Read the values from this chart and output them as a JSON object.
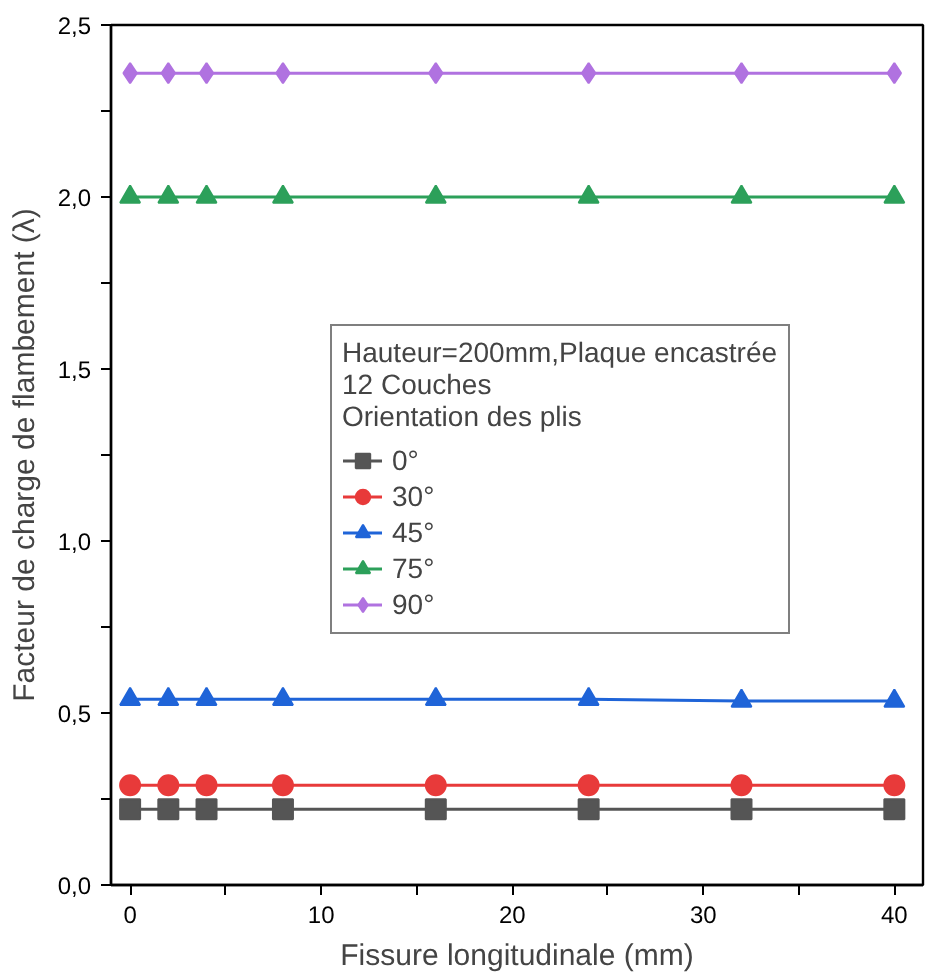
{
  "chart_data": {
    "type": "line",
    "xlabel": "Fissure longitudinale (mm)",
    "ylabel": "Facteur de charge de flambement (λ)",
    "legend_title": "Hauteur=200mm,Plaque encastrée\n12 Couches\nOrientation des plis",
    "x": [
      0,
      2,
      4,
      8,
      16,
      24,
      32,
      40
    ],
    "series": [
      {
        "name": "0°",
        "color": "#555555",
        "marker": "square",
        "values": [
          0.22,
          0.22,
          0.22,
          0.22,
          0.22,
          0.22,
          0.22,
          0.22
        ]
      },
      {
        "name": "30°",
        "color": "#e83a3a",
        "marker": "circle",
        "values": [
          0.29,
          0.29,
          0.29,
          0.29,
          0.29,
          0.29,
          0.29,
          0.29
        ]
      },
      {
        "name": "45°",
        "color": "#1f64d8",
        "marker": "triangle",
        "values": [
          0.54,
          0.54,
          0.54,
          0.54,
          0.54,
          0.54,
          0.535,
          0.535
        ]
      },
      {
        "name": "75°",
        "color": "#2ca05a",
        "marker": "triangle",
        "values": [
          2.0,
          2.0,
          2.0,
          2.0,
          2.0,
          2.0,
          2.0,
          2.0
        ]
      },
      {
        "name": "90°",
        "color": "#b072e0",
        "marker": "diamond",
        "values": [
          2.36,
          2.36,
          2.36,
          2.36,
          2.36,
          2.36,
          2.36,
          2.36
        ]
      }
    ],
    "xlim": [
      -1,
      41.5
    ],
    "ylim": [
      0,
      2.5
    ],
    "xticks": [
      0,
      {
        "value": 5,
        "label": null
      },
      10,
      {
        "value": 15,
        "label": null
      },
      20,
      {
        "value": 25,
        "label": null
      },
      30,
      {
        "value": 35,
        "label": null
      },
      40
    ],
    "yticks": [
      {
        "value": 0,
        "label": "0,0"
      },
      {
        "value": 0.25,
        "label": null
      },
      {
        "value": 0.5,
        "label": "0,5"
      },
      {
        "value": 0.75,
        "label": null
      },
      {
        "value": 1.0,
        "label": "1,0"
      },
      {
        "value": 1.25,
        "label": null
      },
      {
        "value": 1.5,
        "label": "1,5"
      },
      {
        "value": 1.75,
        "label": null
      },
      {
        "value": 2.0,
        "label": "2,0"
      },
      {
        "value": 2.25,
        "label": null
      },
      {
        "value": 2.5,
        "label": "2,5"
      }
    ],
    "grid": false,
    "legend": "center",
    "line_style": "solid"
  }
}
